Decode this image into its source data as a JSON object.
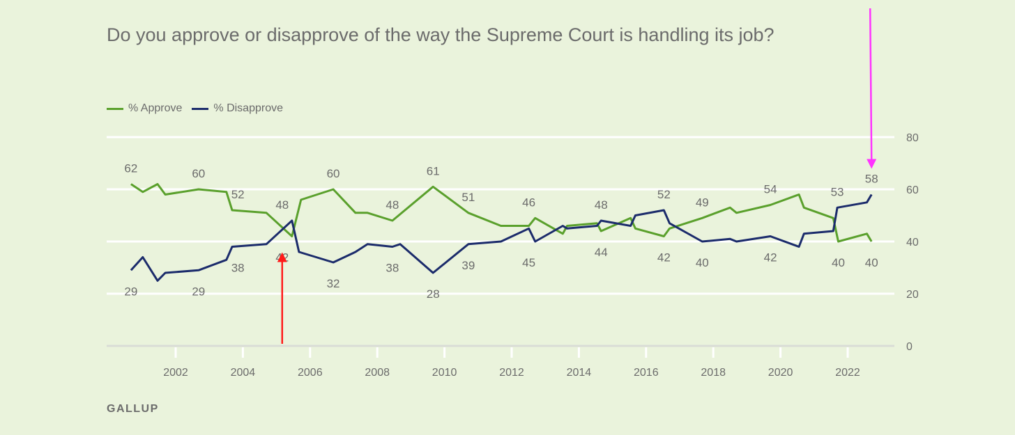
{
  "chart_data": {
    "type": "line",
    "title": "Do you approve or disapprove of the way the Supreme Court is handling its job?",
    "source": "GALLUP",
    "xlabel": "",
    "ylabel": "",
    "xlim": [
      2000.0,
      2023.5
    ],
    "ylim": [
      0,
      80
    ],
    "yticks": [
      0,
      20,
      40,
      60,
      80
    ],
    "xticks": [
      2002,
      2004,
      2006,
      2008,
      2010,
      2012,
      2014,
      2016,
      2018,
      2020,
      2022
    ],
    "grid": true,
    "legend_position": "top-left",
    "colors": {
      "approve": "#5aa02c",
      "disapprove": "#1b2b6b",
      "grid": "#ffffff",
      "axis": "#d9dcd6",
      "red_arrow": "#ff1a1a",
      "magenta_arrow": "#ff33ff"
    },
    "series": [
      {
        "key": "approve",
        "name": "% Approve",
        "points": [
          [
            2000.67,
            62
          ],
          [
            2001.02,
            59
          ],
          [
            2001.46,
            62
          ],
          [
            2001.69,
            58
          ],
          [
            2002.68,
            60
          ],
          [
            2003.51,
            59
          ],
          [
            2003.68,
            52
          ],
          [
            2004.7,
            51
          ],
          [
            2005.46,
            42
          ],
          [
            2005.73,
            56
          ],
          [
            2006.69,
            60
          ],
          [
            2007.35,
            51
          ],
          [
            2007.71,
            51
          ],
          [
            2008.45,
            48
          ],
          [
            2009.66,
            61
          ],
          [
            2010.71,
            51
          ],
          [
            2011.68,
            46
          ],
          [
            2012.51,
            46
          ],
          [
            2012.7,
            49
          ],
          [
            2013.52,
            43
          ],
          [
            2013.65,
            46
          ],
          [
            2014.54,
            47
          ],
          [
            2014.66,
            44
          ],
          [
            2015.54,
            49
          ],
          [
            2015.68,
            45
          ],
          [
            2016.53,
            42
          ],
          [
            2016.7,
            45
          ],
          [
            2017.67,
            49
          ],
          [
            2018.5,
            53
          ],
          [
            2018.69,
            51
          ],
          [
            2019.7,
            54
          ],
          [
            2020.55,
            58
          ],
          [
            2020.7,
            53
          ],
          [
            2021.57,
            49
          ],
          [
            2021.72,
            40
          ],
          [
            2022.57,
            43
          ],
          [
            2022.71,
            40
          ]
        ]
      },
      {
        "key": "disapprove",
        "name": "% Disapprove",
        "points": [
          [
            2000.67,
            29
          ],
          [
            2001.02,
            34
          ],
          [
            2001.46,
            25
          ],
          [
            2001.69,
            28
          ],
          [
            2002.68,
            29
          ],
          [
            2003.51,
            33
          ],
          [
            2003.68,
            38
          ],
          [
            2004.7,
            39
          ],
          [
            2005.46,
            48
          ],
          [
            2005.67,
            36
          ],
          [
            2006.69,
            32
          ],
          [
            2007.35,
            36
          ],
          [
            2007.71,
            39
          ],
          [
            2008.45,
            38
          ],
          [
            2008.68,
            39
          ],
          [
            2009.66,
            28
          ],
          [
            2010.71,
            39
          ],
          [
            2011.68,
            40
          ],
          [
            2012.51,
            45
          ],
          [
            2012.7,
            40
          ],
          [
            2013.52,
            46
          ],
          [
            2013.65,
            45
          ],
          [
            2014.54,
            46
          ],
          [
            2014.66,
            48
          ],
          [
            2015.54,
            46
          ],
          [
            2015.68,
            50
          ],
          [
            2016.53,
            52
          ],
          [
            2016.7,
            47
          ],
          [
            2017.67,
            40
          ],
          [
            2018.5,
            41
          ],
          [
            2018.69,
            40
          ],
          [
            2019.7,
            42
          ],
          [
            2020.55,
            38
          ],
          [
            2020.7,
            43
          ],
          [
            2021.57,
            44
          ],
          [
            2021.69,
            53
          ],
          [
            2022.57,
            55
          ],
          [
            2022.71,
            58
          ]
        ]
      }
    ],
    "data_labels": [
      {
        "text": "62",
        "x": 2000.67,
        "y": 62,
        "pos": "above"
      },
      {
        "text": "29",
        "x": 2000.67,
        "y": 29,
        "pos": "below"
      },
      {
        "text": "60",
        "x": 2002.68,
        "y": 60,
        "pos": "above"
      },
      {
        "text": "29",
        "x": 2002.68,
        "y": 29,
        "pos": "below"
      },
      {
        "text": "52",
        "x": 2003.85,
        "y": 52,
        "pos": "above"
      },
      {
        "text": "38",
        "x": 2003.85,
        "y": 38,
        "pos": "below"
      },
      {
        "text": "48",
        "x": 2005.17,
        "y": 48,
        "pos": "above"
      },
      {
        "text": "42",
        "x": 2005.17,
        "y": 42,
        "pos": "below"
      },
      {
        "text": "60",
        "x": 2006.69,
        "y": 60,
        "pos": "above"
      },
      {
        "text": "32",
        "x": 2006.69,
        "y": 32,
        "pos": "below"
      },
      {
        "text": "48",
        "x": 2008.45,
        "y": 48,
        "pos": "above"
      },
      {
        "text": "38",
        "x": 2008.45,
        "y": 38,
        "pos": "below"
      },
      {
        "text": "61",
        "x": 2009.66,
        "y": 61,
        "pos": "above"
      },
      {
        "text": "28",
        "x": 2009.66,
        "y": 28,
        "pos": "below"
      },
      {
        "text": "51",
        "x": 2010.71,
        "y": 51,
        "pos": "above"
      },
      {
        "text": "39",
        "x": 2010.71,
        "y": 39,
        "pos": "below"
      },
      {
        "text": "46",
        "x": 2012.51,
        "y": 49,
        "pos": "above"
      },
      {
        "text": "45",
        "x": 2012.51,
        "y": 40,
        "pos": "below"
      },
      {
        "text": "48",
        "x": 2014.66,
        "y": 48,
        "pos": "above"
      },
      {
        "text": "44",
        "x": 2014.66,
        "y": 44,
        "pos": "below"
      },
      {
        "text": "52",
        "x": 2016.53,
        "y": 52,
        "pos": "above"
      },
      {
        "text": "42",
        "x": 2016.53,
        "y": 42,
        "pos": "below"
      },
      {
        "text": "49",
        "x": 2017.67,
        "y": 49,
        "pos": "above"
      },
      {
        "text": "40",
        "x": 2017.67,
        "y": 40,
        "pos": "below"
      },
      {
        "text": "54",
        "x": 2019.7,
        "y": 54,
        "pos": "above"
      },
      {
        "text": "42",
        "x": 2019.7,
        "y": 42,
        "pos": "below"
      },
      {
        "text": "53",
        "x": 2021.69,
        "y": 53,
        "pos": "above"
      },
      {
        "text": "40",
        "x": 2021.72,
        "y": 40,
        "pos": "below"
      },
      {
        "text": "58",
        "x": 2022.71,
        "y": 58,
        "pos": "above"
      },
      {
        "text": "40",
        "x": 2022.71,
        "y": 40,
        "pos": "below"
      }
    ],
    "annotations": [
      {
        "kind": "arrow",
        "color_key": "red_arrow",
        "direction": "up",
        "target": [
          2005.17,
          42
        ]
      },
      {
        "kind": "arrow",
        "color_key": "magenta_arrow",
        "direction": "down",
        "target": [
          2022.71,
          58
        ]
      }
    ]
  }
}
